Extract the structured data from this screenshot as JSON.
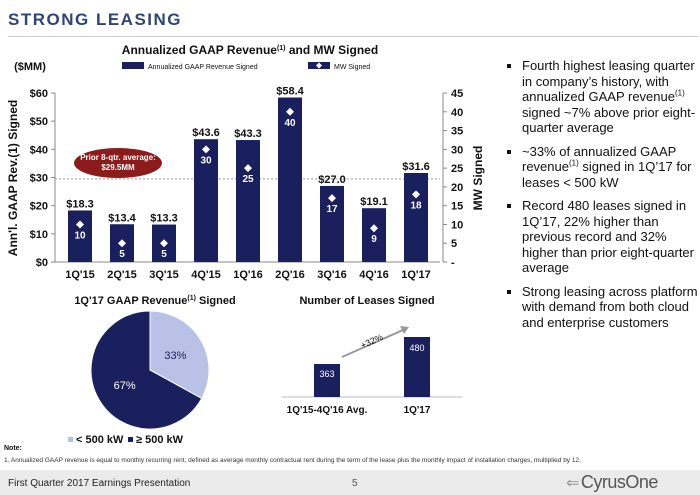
{
  "slide_title": "STRONG LEASING",
  "bullets": [
    {
      "pre": "Fourth highest leasing quarter in company’s history, with annualized GAAP revenue",
      "sup": "(1)",
      "post": " signed ~7% above prior eight-quarter average"
    },
    {
      "pre": "~33% of annualized GAAP revenue",
      "sup": "(1)",
      "post": " signed in 1Q’17 for leases < 500 kW"
    },
    {
      "pre": "Record 480 leases signed in 1Q’17, 22% higher than previous record and 32% higher than prior eight-quarter average",
      "sup": "",
      "post": ""
    },
    {
      "pre": "Strong leasing across platform with demand from both cloud and enterprise customers",
      "sup": "",
      "post": ""
    }
  ],
  "note_label": "Note:",
  "footnote": "1. Annualized GAAP revenue is equal to monthly recurring rent, defined as average monthly contractual rent during the term of the lease plus the monthly impact of installation charges, multiplied by 12.",
  "footer": {
    "text": "First Quarter 2017 Earnings Presentation",
    "page": "5",
    "logo": "CyrusOne"
  },
  "colors": {
    "navy": "#1a1f5e",
    "light": "#b9c2e6",
    "avg_oval": "#8c1c1c",
    "title": "#2f4577"
  },
  "chart_data": [
    {
      "type": "bar",
      "title": "Annualized GAAP Revenue",
      "title_sup": "(1)",
      "title_post": " and MW Signed",
      "unit_label": "($MM)",
      "ylabel": "Ann'l. GAAP Rev.(1) Signed",
      "y2label": "MW Signed",
      "categories": [
        "1Q'15",
        "2Q'15",
        "3Q'15",
        "4Q'15",
        "1Q'16",
        "2Q'16",
        "3Q'16",
        "4Q'16",
        "1Q'17"
      ],
      "ylim": [
        0,
        60
      ],
      "y2lim": [
        0,
        45
      ],
      "yticks": [
        "$0",
        "$10",
        "$20",
        "$30",
        "$40",
        "$50",
        "$60"
      ],
      "y2ticks": [
        "-",
        "5",
        "10",
        "15",
        "20",
        "25",
        "30",
        "35",
        "40",
        "45"
      ],
      "series": [
        {
          "name": "Annualized GAAP Revenue Signed",
          "axis": "left",
          "values": [
            18.3,
            13.4,
            13.3,
            43.6,
            43.3,
            58.4,
            27.0,
            19.1,
            31.6
          ],
          "labels": [
            "$18.3",
            "$13.4",
            "$13.3",
            "$43.6",
            "$43.3",
            "$58.4",
            "$27.0",
            "$19.1",
            "$31.6"
          ]
        },
        {
          "name": "MW Signed",
          "axis": "right",
          "values": [
            10,
            5,
            5,
            30,
            25,
            40,
            17,
            9,
            18
          ]
        }
      ],
      "reference_line": {
        "value": 29.5,
        "label_line1": "Prior 8-qtr. average:",
        "label_line2": "$29.5MM"
      }
    },
    {
      "type": "pie",
      "title": "1Q'17 GAAP Revenue",
      "title_sup": "(1)",
      "title_post": " Signed",
      "slices": [
        {
          "label": "< 500 kW",
          "value": 33,
          "text": "33%",
          "color": "#b9c2e6"
        },
        {
          "label": "≥ 500 kW",
          "value": 67,
          "text": "67%",
          "color": "#1a1f5e"
        }
      ]
    },
    {
      "type": "bar",
      "title": "Number of Leases Signed",
      "categories": [
        "1Q'15-4Q'16 Avg.",
        "1Q'17"
      ],
      "values": [
        363,
        480
      ],
      "labels": [
        "363",
        "480"
      ],
      "annotation": "+32%"
    }
  ]
}
